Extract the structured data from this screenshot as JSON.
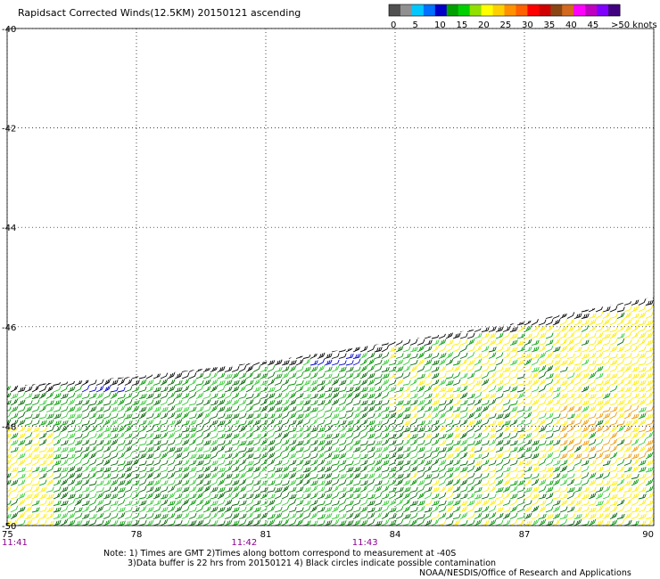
{
  "chart_data": {
    "type": "wind-barb map",
    "title": "Rapidsact Corrected Winds(12.5KM) 20150121 ascending",
    "x_ticks": [
      "75",
      "78",
      "81",
      "84",
      "87",
      "90"
    ],
    "y_ticks": [
      "-40",
      "-42",
      "-44",
      "-46",
      "-48",
      "-50"
    ],
    "xlim": [
      75,
      90
    ],
    "ylim": [
      -50,
      -40
    ],
    "time_labels": [
      {
        "lon": 75,
        "label": "11:41"
      },
      {
        "lon": 80.5,
        "label": "11:42"
      },
      {
        "lon": 83.3,
        "label": "11:43"
      }
    ],
    "colorbar": {
      "ticks": [
        "0",
        "5",
        "10",
        "15",
        "20",
        "25",
        "30",
        "35",
        "40",
        "45",
        ">50 knots"
      ],
      "colors": [
        "#505050",
        "#909090",
        "#00c8ff",
        "#0070ff",
        "#0000c8",
        "#00a000",
        "#00d000",
        "#90e000",
        "#ffff00",
        "#ffd000",
        "#ff9000",
        "#ff6000",
        "#ff0000",
        "#d00000",
        "#8b4513",
        "#d2691e",
        "#ff00ff",
        "#c000c0",
        "#8000ff",
        "#400080"
      ]
    },
    "barb_colors": {
      "black": "#000000",
      "blue": "#0000cc",
      "green": "#009900",
      "dark_green": "#006600",
      "light_green": "#33cc33",
      "yellow": "#ffee00",
      "orange": "#ee9900"
    },
    "swath_upper_edge_lat": [
      [
        75,
        -47.2
      ],
      [
        78,
        -47.0
      ],
      [
        81,
        -46.7
      ],
      [
        84,
        -46.3
      ],
      [
        87,
        -45.9
      ],
      [
        90,
        -45.4
      ]
    ],
    "grid": true
  },
  "notes": {
    "line1": "Note: 1) Times are GMT 2)Times along bottom correspond to measurement at -40S",
    "line2": "3)Data buffer is 22 hrs from 20150121 4) Black circles indicate possible contamination",
    "line3": "NOAA/NESDIS/Office of Research and Applications"
  }
}
